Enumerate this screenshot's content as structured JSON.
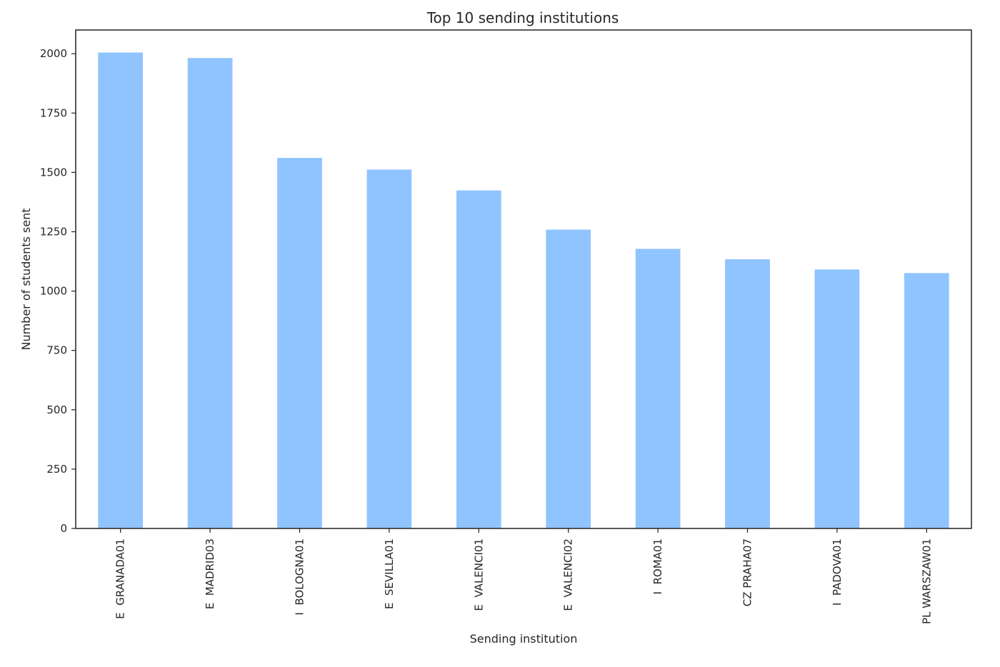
{
  "chart_data": {
    "type": "bar",
    "title": "Top 10 sending institutions",
    "xlabel": "Sending institution",
    "ylabel": "Number of students sent",
    "categories": [
      "E  GRANADA01",
      "E  MADRID03",
      "I  BOLOGNA01",
      "E  SEVILLA01",
      "E  VALENCI01",
      "E  VALENCI02",
      "I  ROMA01",
      "CZ PRAHA07",
      "I  PADOVA01",
      "PL WARSZAW01"
    ],
    "values": [
      2005,
      1982,
      1561,
      1512,
      1424,
      1259,
      1178,
      1134,
      1091,
      1076
    ],
    "ylim": [
      0,
      2100
    ],
    "yticks": [
      0,
      250,
      500,
      750,
      1000,
      1250,
      1500,
      1750,
      2000
    ],
    "grid": false,
    "legend": false,
    "bar_color": "#90c4ff",
    "axis_color": "#222222",
    "text_color": "#262626"
  }
}
